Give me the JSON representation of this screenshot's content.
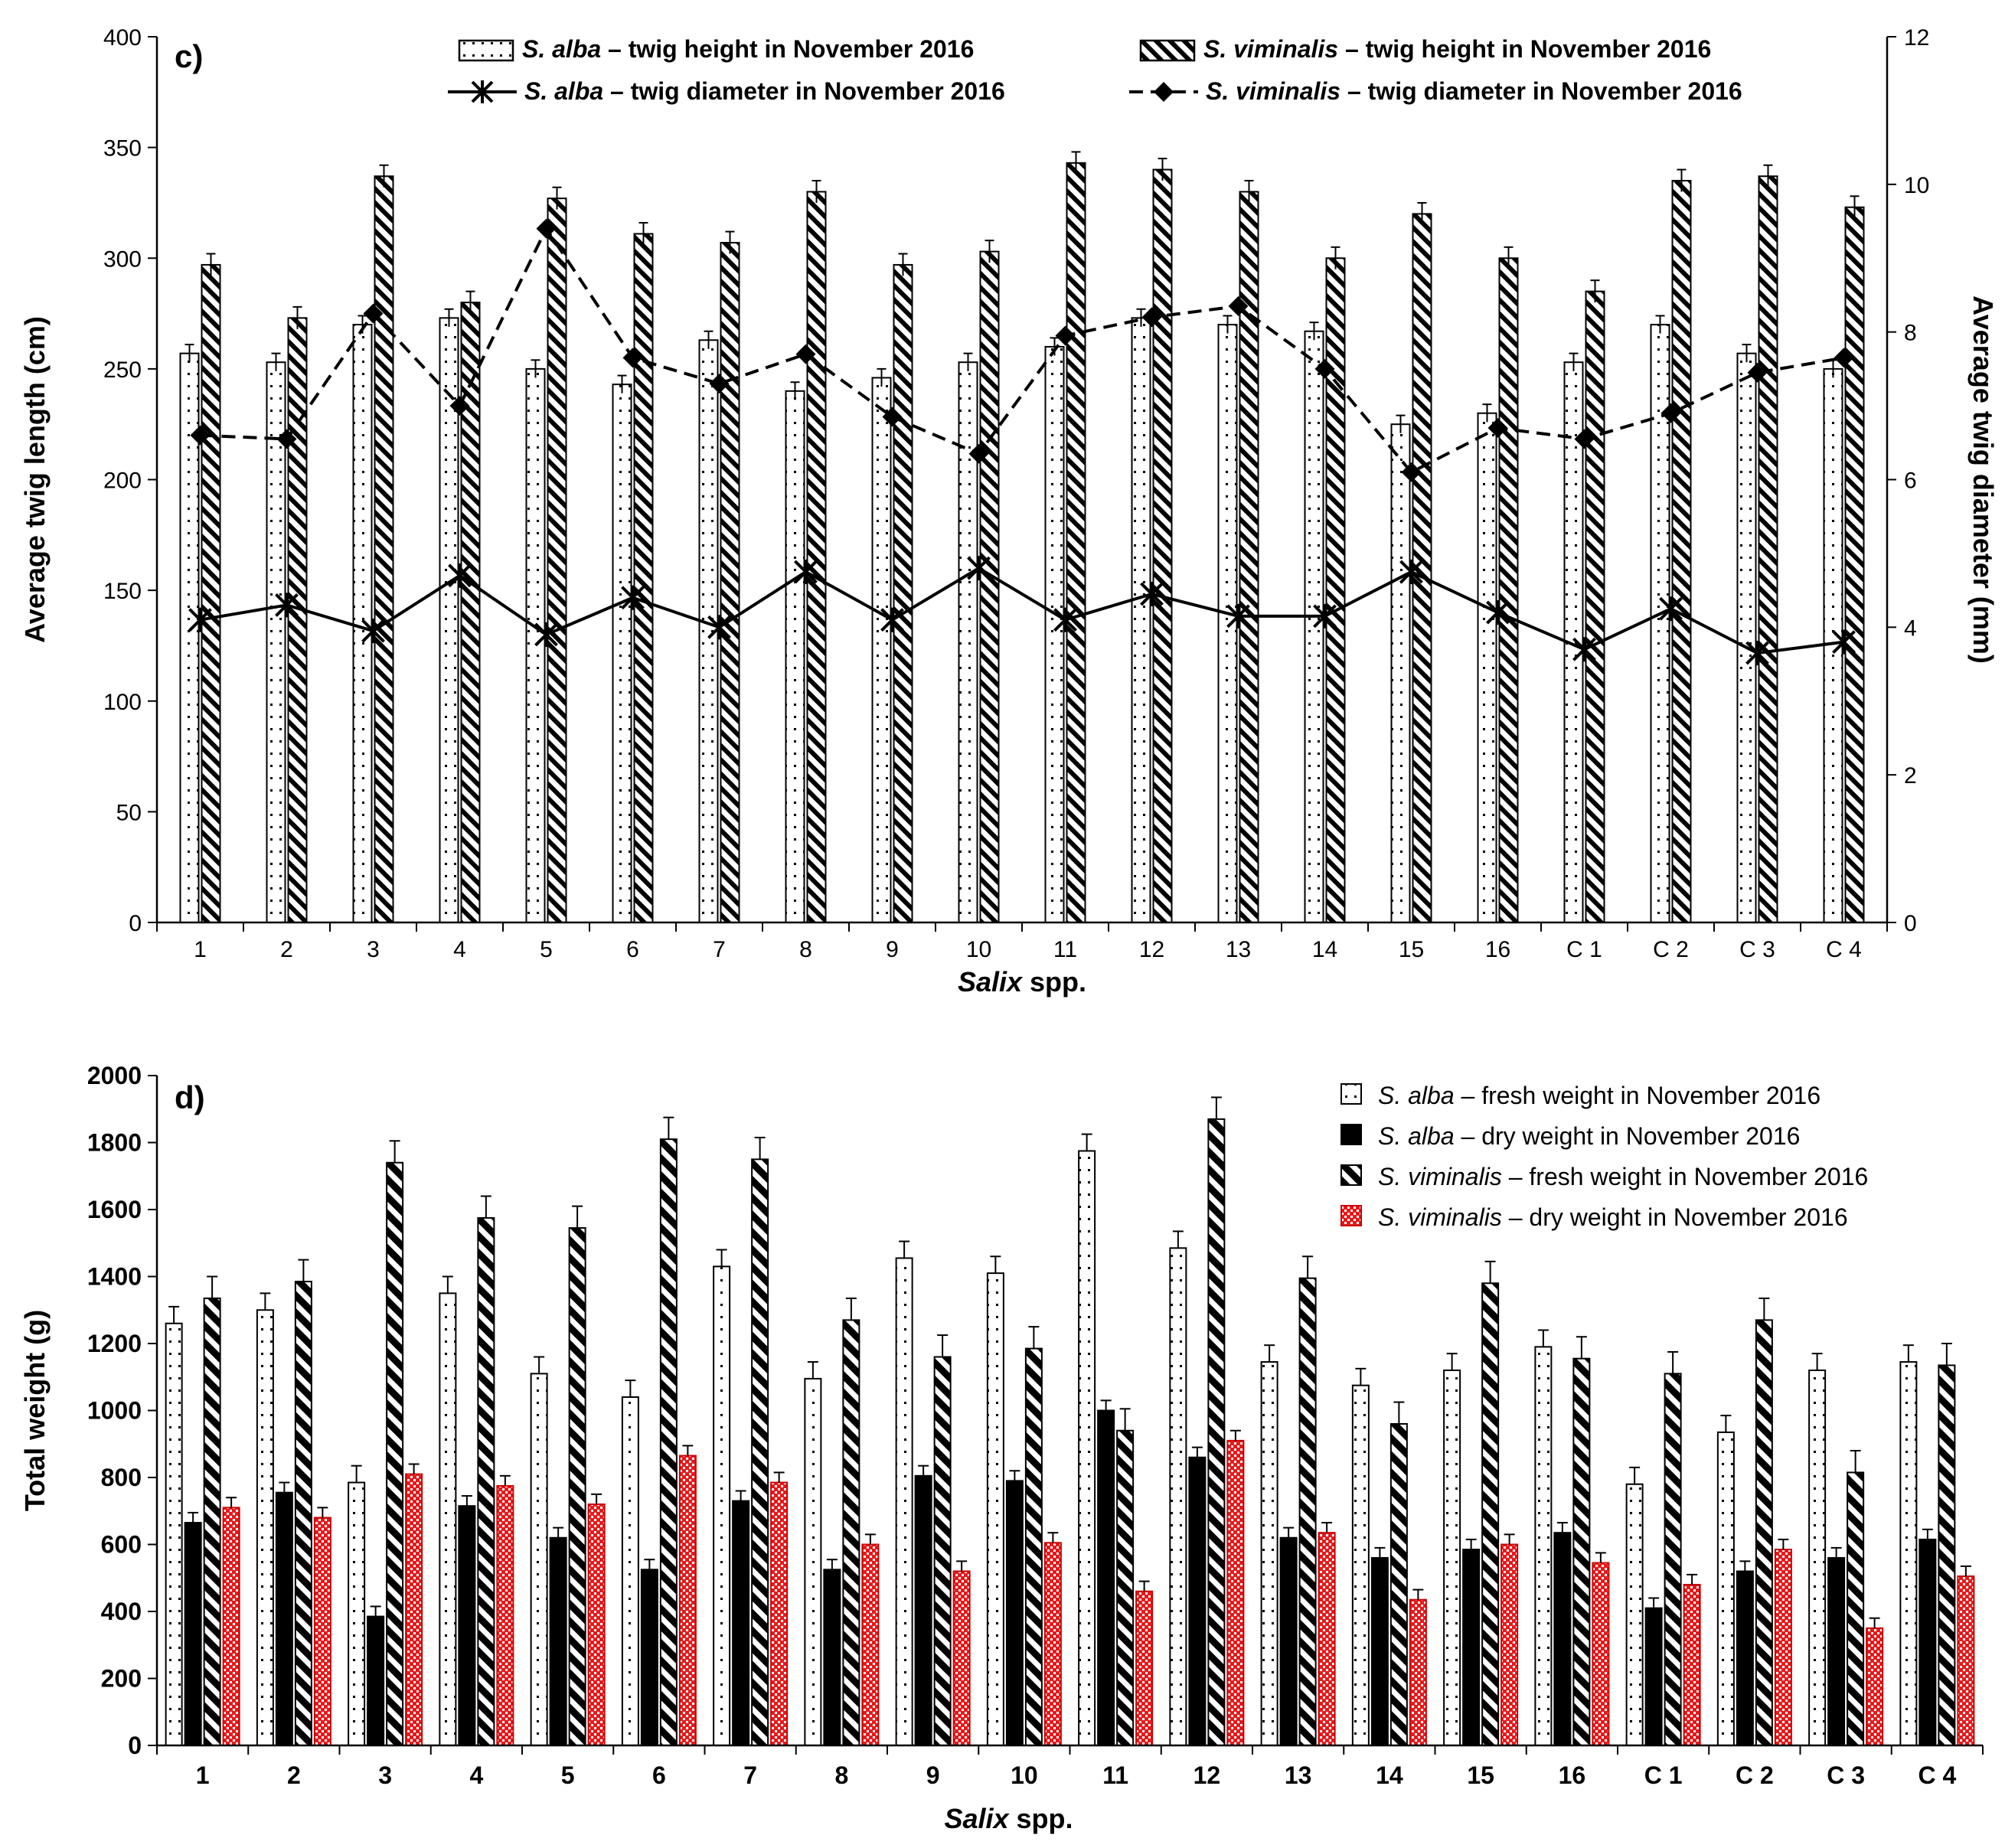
{
  "chart_data": [
    {
      "type": "bar",
      "panel_label": "c)",
      "title": "",
      "xlabel_italic": "Salix",
      "xlabel_rest": " spp.",
      "ylabel": "Average twig length (cm)",
      "y2label": "Average twig diameter (mm)",
      "ylim": [
        0,
        400
      ],
      "y2lim": [
        0,
        12
      ],
      "yticks": [
        "0",
        "50",
        "100",
        "150",
        "200",
        "250",
        "300",
        "350",
        "400"
      ],
      "y2ticks": [
        "0",
        "2",
        "4",
        "6",
        "8",
        "10",
        "12"
      ],
      "categories": [
        "1",
        "2",
        "3",
        "4",
        "5",
        "6",
        "7",
        "8",
        "9",
        "10",
        "11",
        "12",
        "13",
        "14",
        "15",
        "16",
        "C 1",
        "C 2",
        "C 3",
        "C 4"
      ],
      "series": [
        {
          "name": "S. alba – twig height in November 2016",
          "name_italic": "S. alba",
          "name_rest": " – twig height in November 2016",
          "kind": "bar",
          "pattern": "dots",
          "axis": "left",
          "values": [
            257,
            253,
            270,
            273,
            250,
            243,
            263,
            240,
            246,
            253,
            260,
            273,
            270,
            267,
            225,
            230,
            253,
            270,
            257,
            250
          ],
          "errors": [
            4,
            4,
            4,
            4,
            4,
            4,
            4,
            4,
            4,
            4,
            4,
            4,
            4,
            4,
            4,
            4,
            4,
            4,
            4,
            4
          ]
        },
        {
          "name": "S. viminalis – twig height in November 2016",
          "name_italic": "S. viminalis",
          "name_rest": " – twig height in November 2016",
          "kind": "bar",
          "pattern": "hatch",
          "axis": "left",
          "values": [
            297,
            273,
            337,
            280,
            327,
            311,
            307,
            330,
            297,
            303,
            343,
            340,
            330,
            300,
            320,
            300,
            285,
            335,
            337,
            323
          ],
          "errors": [
            5,
            5,
            5,
            5,
            5,
            5,
            5,
            5,
            5,
            5,
            5,
            5,
            5,
            5,
            5,
            5,
            5,
            5,
            5,
            5
          ]
        },
        {
          "name": "S. alba – twig diameter in November 2016",
          "name_italic": "S. alba",
          "name_rest": " – twig diameter in November 2016",
          "kind": "line",
          "marker": "star",
          "dash": "solid",
          "axis": "right",
          "values": [
            4.1,
            4.3,
            3.95,
            4.7,
            3.9,
            4.4,
            4.0,
            4.75,
            4.1,
            4.8,
            4.1,
            4.45,
            4.15,
            4.15,
            4.75,
            4.2,
            3.7,
            4.25,
            3.65,
            3.8
          ]
        },
        {
          "name": "S. viminalis – twig diameter in November 2016",
          "name_italic": "S. viminalis",
          "name_rest": " – twig diameter in November 2016",
          "kind": "line",
          "marker": "diamond",
          "dash": "dashed",
          "axis": "right",
          "values": [
            6.6,
            6.55,
            8.25,
            7.0,
            9.4,
            7.65,
            7.3,
            7.7,
            6.85,
            6.35,
            7.95,
            8.2,
            8.35,
            7.5,
            6.1,
            6.7,
            6.55,
            6.9,
            7.45,
            7.65
          ]
        }
      ]
    },
    {
      "type": "bar",
      "panel_label": "d)",
      "title": "",
      "xlabel_italic": "Salix",
      "xlabel_rest": " spp.",
      "ylabel": "Total weight (g)",
      "ylim": [
        0,
        2000
      ],
      "yticks": [
        "0",
        "200",
        "400",
        "600",
        "800",
        "1000",
        "1200",
        "1400",
        "1600",
        "1800",
        "2000"
      ],
      "categories": [
        "1",
        "2",
        "3",
        "4",
        "5",
        "6",
        "7",
        "8",
        "9",
        "10",
        "11",
        "12",
        "13",
        "14",
        "15",
        "16",
        "C 1",
        "C 2",
        "C 3",
        "C 4"
      ],
      "series": [
        {
          "name": "S. alba – fresh weight in November 2016",
          "name_italic": "S. alba",
          "name_rest": " – fresh weight in November 2016",
          "pattern": "dots",
          "color": "#ffffff",
          "values": [
            1260,
            1300,
            785,
            1350,
            1110,
            1040,
            1430,
            1095,
            1455,
            1410,
            1775,
            1485,
            1145,
            1075,
            1120,
            1190,
            780,
            935,
            1120,
            1145
          ],
          "errors": [
            50,
            50,
            50,
            50,
            50,
            50,
            50,
            50,
            50,
            50,
            50,
            50,
            50,
            50,
            50,
            50,
            50,
            50,
            50,
            50
          ]
        },
        {
          "name": "S. alba – dry weight in November 2016",
          "name_italic": "S. alba",
          "name_rest": " – dry weight in November 2016",
          "pattern": "solid",
          "color": "#000000",
          "values": [
            665,
            755,
            385,
            715,
            620,
            525,
            730,
            525,
            805,
            790,
            1000,
            860,
            620,
            560,
            585,
            635,
            410,
            520,
            560,
            615
          ],
          "errors": [
            30,
            30,
            30,
            30,
            30,
            30,
            30,
            30,
            30,
            30,
            30,
            30,
            30,
            30,
            30,
            30,
            30,
            30,
            30,
            30
          ]
        },
        {
          "name": "S. viminalis – fresh weight in November 2016",
          "name_italic": "S. viminalis",
          "name_rest": " – fresh weight in November 2016",
          "pattern": "hatch",
          "color": "#000000",
          "values": [
            1335,
            1385,
            1740,
            1575,
            1545,
            1810,
            1750,
            1270,
            1160,
            1185,
            940,
            1870,
            1395,
            960,
            1380,
            1155,
            1110,
            1270,
            815,
            1135
          ],
          "errors": [
            65,
            65,
            65,
            65,
            65,
            65,
            65,
            65,
            65,
            65,
            65,
            65,
            65,
            65,
            65,
            65,
            65,
            65,
            65,
            65
          ]
        },
        {
          "name": "S. viminalis – dry weight in November 2016",
          "name_italic": "S. viminalis",
          "name_rest": " – dry weight in November 2016",
          "pattern": "check",
          "color": "#e8191b",
          "values": [
            710,
            680,
            810,
            775,
            720,
            865,
            785,
            600,
            520,
            605,
            460,
            910,
            635,
            435,
            600,
            545,
            480,
            585,
            350,
            505
          ],
          "errors": [
            30,
            30,
            30,
            30,
            30,
            30,
            30,
            30,
            30,
            30,
            30,
            30,
            30,
            30,
            30,
            30,
            30,
            30,
            30,
            30
          ]
        }
      ]
    }
  ]
}
